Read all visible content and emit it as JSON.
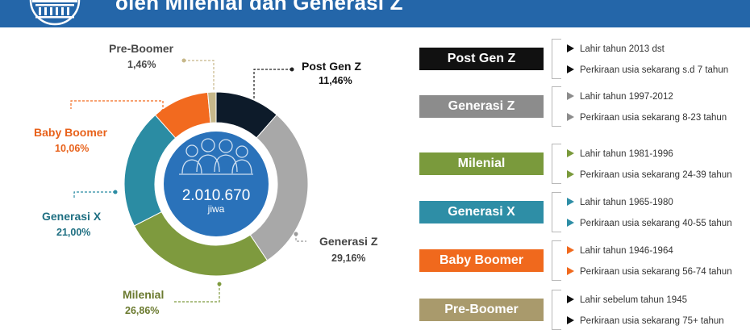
{
  "header": {
    "title": "oleh Milenial dan Generasi Z",
    "bg_color": "#2466a9"
  },
  "center": {
    "total": "2.010.670",
    "unit": "jiwa",
    "circle_color": "#2a72ba"
  },
  "chart_data": {
    "type": "pie",
    "style": "donut",
    "categories": [
      "Post Gen Z",
      "Generasi Z",
      "Milenial",
      "Generasi X",
      "Baby Boomer",
      "Pre-Boomer"
    ],
    "values": [
      11.46,
      29.16,
      26.86,
      21.0,
      10.06,
      1.46
    ],
    "value_labels": [
      "11,46%",
      "29,16%",
      "26,86%",
      "21,00%",
      "10,06%",
      "1,46%"
    ],
    "colors": [
      "#0d1b2a",
      "#a8a8a8",
      "#7e9a3e",
      "#2b8ca3",
      "#f26a1f",
      "#c7b88a"
    ],
    "label_colors": [
      "#111111",
      "#444444",
      "#6b7a2f",
      "#1f6f82",
      "#e8621b",
      "#4a4a4a"
    ]
  },
  "legend": [
    {
      "name": "Post Gen Z",
      "color": "#111111",
      "lines": [
        "Lahir tahun 2013 dst",
        "Perkiraan usia sekarang s.d 7 tahun"
      ],
      "arrow_color": "#111111"
    },
    {
      "name": "Generasi Z",
      "color": "#8c8c8c",
      "lines": [
        "Lahir tahun 1997-2012",
        "Perkiraan usia sekarang 8-23 tahun"
      ],
      "arrow_color": "#8c8c8c"
    },
    {
      "name": "Milenial",
      "color": "#7a9a3c",
      "lines": [
        "Lahir tahun 1981-1996",
        "Perkiraan usia sekarang 24-39 tahun"
      ],
      "arrow_color": "#7a9a3c"
    },
    {
      "name": "Generasi X",
      "color": "#2e8ea6",
      "lines": [
        "Lahir tahun 1965-1980",
        "Perkiraan usia sekarang 40-55 tahun"
      ],
      "arrow_color": "#2e8ea6"
    },
    {
      "name": "Baby Boomer",
      "color": "#f0691d",
      "lines": [
        "Lahir tahun 1946-1964",
        "Perkiraan usia sekarang 56-74 tahun"
      ],
      "arrow_color": "#f0691d"
    },
    {
      "name": "Pre-Boomer",
      "color": "#a99a6c",
      "lines": [
        "Lahir sebelum tahun 1945",
        "Perkiraan usia sekarang 75+ tahun"
      ],
      "arrow_color": "#111111"
    }
  ]
}
